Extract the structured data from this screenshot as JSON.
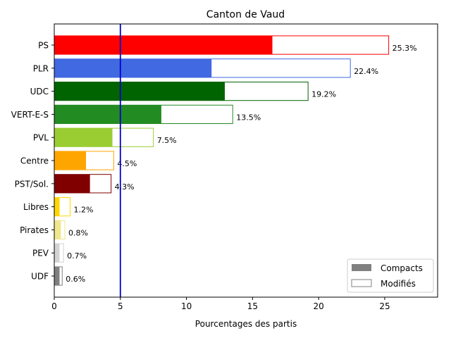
{
  "chart_data": {
    "type": "bar",
    "orientation": "horizontal",
    "title": "Canton de Vaud",
    "xlabel": "Pourcentages des partis",
    "ylabel": "",
    "xlim": [
      0,
      29
    ],
    "xticks": [
      "0",
      "5",
      "10",
      "15",
      "20",
      "25"
    ],
    "reference_line": {
      "x": 5,
      "color": "#0000cc"
    },
    "legend": {
      "placement": "bottom-right",
      "entries": [
        {
          "label": "Compacts",
          "style": "filled"
        },
        {
          "label": "Modifiés",
          "style": "outline"
        }
      ]
    },
    "categories": [
      "PS",
      "PLR",
      "UDC",
      "VERT-E-S",
      "PVL",
      "Centre",
      "PST/Sol.",
      "Libres",
      "Pirates",
      "PEV",
      "UDF"
    ],
    "series": [
      {
        "name": "Compacts",
        "values": [
          16.5,
          11.9,
          12.9,
          8.1,
          4.4,
          2.4,
          2.7,
          0.4,
          0.5,
          0.4,
          0.4
        ]
      },
      {
        "name": "Modifiés",
        "values": [
          25.3,
          22.4,
          19.2,
          13.5,
          7.5,
          4.5,
          4.3,
          1.2,
          0.8,
          0.7,
          0.6
        ]
      }
    ],
    "value_labels": [
      "25.3%",
      "22.4%",
      "19.2%",
      "13.5%",
      "7.5%",
      "4.5%",
      "4.3%",
      "1.2%",
      "0.8%",
      "0.7%",
      "0.6%"
    ],
    "colors": [
      "#ff0000",
      "#4169e1",
      "#006400",
      "#228b22",
      "#9acd32",
      "#ffa500",
      "#800000",
      "#ffd700",
      "#f0e68c",
      "#d3d3d3",
      "#808080"
    ],
    "legend_color": "#808080"
  }
}
